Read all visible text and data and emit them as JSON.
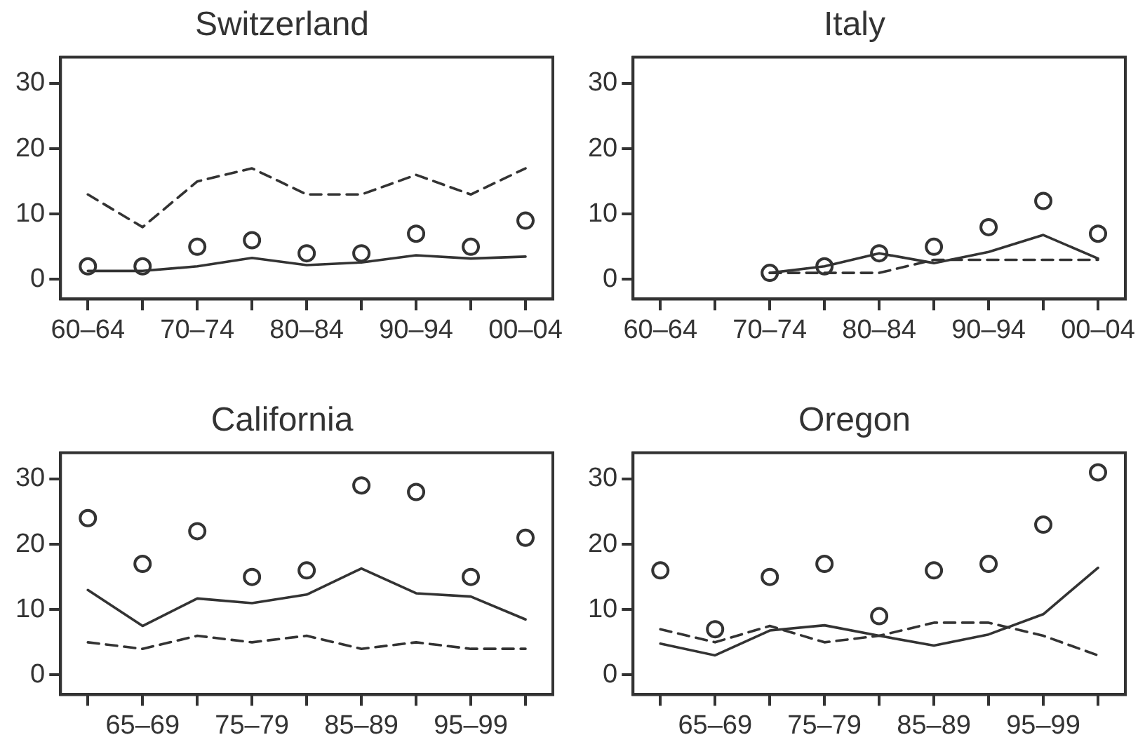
{
  "chart_data": [
    {
      "type": "line",
      "title": "Switzerland",
      "categories": [
        "60–64",
        null,
        "70–74",
        null,
        "80–84",
        null,
        "90–94",
        null,
        "00–04"
      ],
      "ylim": [
        -3,
        34
      ],
      "yticks": [
        0,
        10,
        20,
        30
      ],
      "grid": false,
      "legend": false,
      "series": [
        {
          "type": "scatter",
          "marker": "circle",
          "color": "#333333",
          "values": [
            2,
            2,
            5,
            6,
            4,
            4,
            7,
            5,
            9
          ]
        },
        {
          "type": "line",
          "marker": "none",
          "line_style": "solid",
          "color": "#333333",
          "values": [
            1.3,
            1.3,
            2,
            3.3,
            2.2,
            2.6,
            3.7,
            3.2,
            3.5
          ]
        },
        {
          "type": "line",
          "marker": "none",
          "line_style": "dashed",
          "color": "#333333",
          "values": [
            13,
            8,
            15,
            17,
            13,
            13,
            16,
            13,
            17
          ]
        }
      ]
    },
    {
      "type": "line",
      "title": "Italy",
      "categories": [
        "60–64",
        null,
        "70–74",
        null,
        "80–84",
        null,
        "90–94",
        null,
        "00–04"
      ],
      "ylim": [
        -3,
        34
      ],
      "yticks": [
        0,
        10,
        20,
        30
      ],
      "grid": false,
      "legend": false,
      "series": [
        {
          "type": "scatter",
          "marker": "circle",
          "color": "#333333",
          "values": [
            null,
            null,
            1,
            2,
            4,
            5,
            8,
            12,
            7
          ]
        },
        {
          "type": "line",
          "marker": "none",
          "line_style": "solid",
          "color": "#333333",
          "values": [
            null,
            null,
            1,
            2,
            4,
            2.5,
            4.2,
            6.8,
            3.2
          ]
        },
        {
          "type": "line",
          "marker": "none",
          "line_style": "dashed",
          "color": "#333333",
          "values": [
            null,
            null,
            1,
            1,
            1,
            3,
            3,
            3,
            3
          ]
        }
      ]
    },
    {
      "type": "line",
      "title": "California",
      "categories": [
        null,
        "65–69",
        null,
        "75–79",
        null,
        "85–89",
        null,
        "95–99",
        null
      ],
      "ylim": [
        -3,
        34
      ],
      "yticks": [
        0,
        10,
        20,
        30
      ],
      "grid": false,
      "legend": false,
      "series": [
        {
          "type": "scatter",
          "marker": "circle",
          "color": "#333333",
          "values": [
            24,
            17,
            22,
            15,
            16,
            29,
            28,
            15,
            21
          ]
        },
        {
          "type": "line",
          "marker": "none",
          "line_style": "solid",
          "color": "#333333",
          "values": [
            13,
            7.5,
            11.7,
            11,
            12.3,
            16.3,
            12.5,
            12,
            8.5
          ]
        },
        {
          "type": "line",
          "marker": "none",
          "line_style": "dashed",
          "color": "#333333",
          "values": [
            5,
            4,
            6,
            5,
            6,
            4,
            5,
            4,
            4
          ]
        }
      ]
    },
    {
      "type": "line",
      "title": "Oregon",
      "categories": [
        null,
        "65–69",
        null,
        "75–79",
        null,
        "85–89",
        null,
        "95–99",
        null
      ],
      "ylim": [
        -3,
        34
      ],
      "yticks": [
        0,
        10,
        20,
        30
      ],
      "grid": false,
      "legend": false,
      "series": [
        {
          "type": "scatter",
          "marker": "circle",
          "color": "#333333",
          "values": [
            16,
            7,
            15,
            17,
            9,
            16,
            17,
            23,
            31
          ]
        },
        {
          "type": "line",
          "marker": "none",
          "line_style": "solid",
          "color": "#333333",
          "values": [
            4.8,
            3,
            6.8,
            7.6,
            6,
            4.5,
            6.2,
            9.3,
            16.4
          ]
        },
        {
          "type": "line",
          "marker": "none",
          "line_style": "dashed",
          "color": "#333333",
          "values": [
            7,
            5,
            7.5,
            5,
            6,
            8,
            8,
            6,
            3
          ]
        }
      ]
    }
  ]
}
